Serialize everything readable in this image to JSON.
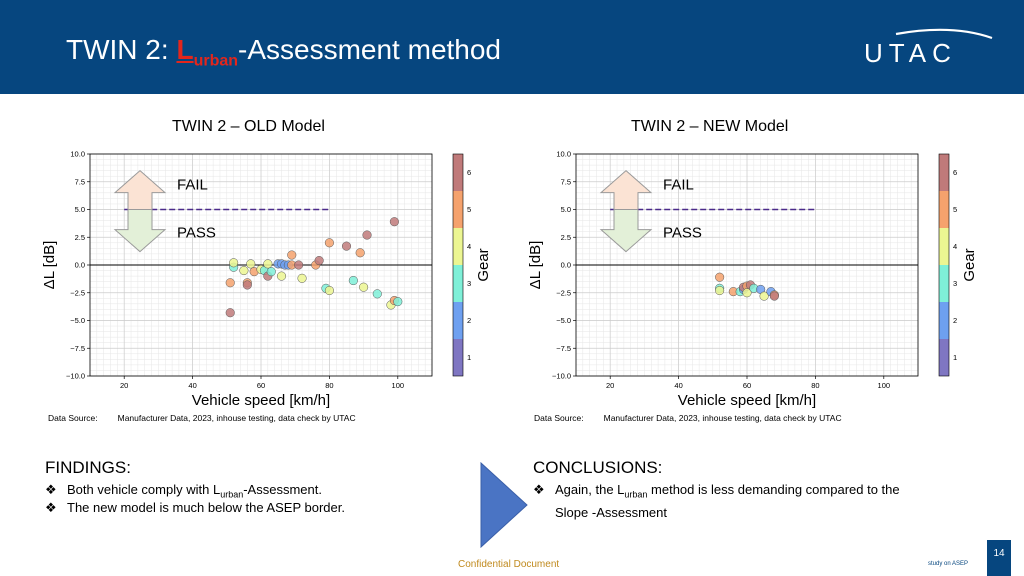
{
  "header": {
    "title_prefix": "TWIN 2: ",
    "title_L": "L",
    "title_sub": "urban",
    "title_suffix": "-Assessment method",
    "logo_text": "UTAC"
  },
  "colors": {
    "header_bg": "#06467f",
    "accent_red": "#e3261c",
    "confidential": "#c08a1e"
  },
  "old_model": {
    "subtitle": "TWIN 2 – OLD Model",
    "source_label": "Data Source:",
    "source_text": "Manufacturer Data, 2023, inhouse testing, data check by UTAC"
  },
  "new_model": {
    "subtitle": "TWIN 2 – NEW Model",
    "source_label": "Data Source:",
    "source_text": "Manufacturer Data, 2023, inhouse testing, data check by UTAC"
  },
  "chart_data": [
    {
      "type": "scatter",
      "xlabel": "Vehicle speed [km/h]",
      "ylabel": "ΔL [dB]",
      "xlim": [
        10,
        110
      ],
      "ylim": [
        -10,
        10
      ],
      "xticks": [
        20,
        40,
        60,
        80,
        100
      ],
      "yticks": [
        -10,
        -7.5,
        -5,
        -2.5,
        0,
        2.5,
        5,
        7.5,
        10
      ],
      "ytick_labels": [
        "−10.0",
        "−7.5",
        "−5.0",
        "−2.5",
        "0.0",
        "2.5",
        "5.0",
        "7.5",
        "10.0"
      ],
      "grid": true,
      "threshold_y": 5,
      "threshold_x": [
        20,
        80
      ],
      "reference_y": 0,
      "fail_label": "FAIL",
      "pass_label": "PASS",
      "colorbar": {
        "label": "Gear",
        "ticks": [
          1,
          2,
          3,
          4,
          5,
          6
        ]
      },
      "points": [
        {
          "x": 51,
          "y": -4.3,
          "gear": 6
        },
        {
          "x": 51,
          "y": -1.6,
          "gear": 5
        },
        {
          "x": 52,
          "y": -0.2,
          "gear": 3
        },
        {
          "x": 52,
          "y": 0.2,
          "gear": 4
        },
        {
          "x": 55,
          "y": -0.5,
          "gear": 4
        },
        {
          "x": 56,
          "y": -1.6,
          "gear": 5
        },
        {
          "x": 56,
          "y": -1.8,
          "gear": 6
        },
        {
          "x": 57,
          "y": 0.1,
          "gear": 4
        },
        {
          "x": 58,
          "y": -0.6,
          "gear": 5
        },
        {
          "x": 60,
          "y": -0.4,
          "gear": 4
        },
        {
          "x": 61,
          "y": -0.5,
          "gear": 3
        },
        {
          "x": 62,
          "y": -1.0,
          "gear": 6
        },
        {
          "x": 62,
          "y": 0.1,
          "gear": 4
        },
        {
          "x": 63,
          "y": -0.6,
          "gear": 3
        },
        {
          "x": 65,
          "y": 0.1,
          "gear": 2
        },
        {
          "x": 66,
          "y": 0.1,
          "gear": 2
        },
        {
          "x": 67,
          "y": 0.0,
          "gear": 2
        },
        {
          "x": 68,
          "y": 0.0,
          "gear": 2
        },
        {
          "x": 66,
          "y": -1.0,
          "gear": 4
        },
        {
          "x": 69,
          "y": 0.0,
          "gear": 5
        },
        {
          "x": 69,
          "y": 0.9,
          "gear": 5
        },
        {
          "x": 71,
          "y": 0.0,
          "gear": 6
        },
        {
          "x": 72,
          "y": -1.2,
          "gear": 4
        },
        {
          "x": 76,
          "y": 0.0,
          "gear": 5
        },
        {
          "x": 77,
          "y": 0.4,
          "gear": 6
        },
        {
          "x": 79,
          "y": -2.1,
          "gear": 3
        },
        {
          "x": 80,
          "y": 2.0,
          "gear": 5
        },
        {
          "x": 80,
          "y": -2.3,
          "gear": 4
        },
        {
          "x": 85,
          "y": 1.7,
          "gear": 6
        },
        {
          "x": 87,
          "y": -1.4,
          "gear": 3
        },
        {
          "x": 89,
          "y": 1.1,
          "gear": 5
        },
        {
          "x": 90,
          "y": -2.0,
          "gear": 4
        },
        {
          "x": 91,
          "y": 2.7,
          "gear": 6
        },
        {
          "x": 94,
          "y": -2.6,
          "gear": 3
        },
        {
          "x": 98,
          "y": -3.6,
          "gear": 4
        },
        {
          "x": 99,
          "y": 3.9,
          "gear": 6
        },
        {
          "x": 99,
          "y": -3.2,
          "gear": 5
        },
        {
          "x": 100,
          "y": -3.3,
          "gear": 3
        }
      ]
    },
    {
      "type": "scatter",
      "xlabel": "Vehicle speed [km/h]",
      "ylabel": "ΔL [dB]",
      "xlim": [
        10,
        110
      ],
      "ylim": [
        -10,
        10
      ],
      "xticks": [
        20,
        40,
        60,
        80,
        100
      ],
      "yticks": [
        -10,
        -7.5,
        -5,
        -2.5,
        0,
        2.5,
        5,
        7.5,
        10
      ],
      "ytick_labels": [
        "−10.0",
        "−7.5",
        "−5.0",
        "−2.5",
        "0.0",
        "2.5",
        "5.0",
        "7.5",
        "10.0"
      ],
      "grid": true,
      "threshold_y": 5,
      "threshold_x": [
        20,
        80
      ],
      "reference_y": 0,
      "fail_label": "FAIL",
      "pass_label": "PASS",
      "colorbar": {
        "label": "Gear",
        "ticks": [
          1,
          2,
          3,
          4,
          5,
          6
        ]
      },
      "points": [
        {
          "x": 52,
          "y": -1.1,
          "gear": 5
        },
        {
          "x": 52,
          "y": -2.1,
          "gear": 3
        },
        {
          "x": 52,
          "y": -2.3,
          "gear": 4
        },
        {
          "x": 56,
          "y": -2.4,
          "gear": 5
        },
        {
          "x": 58,
          "y": -2.4,
          "gear": 3
        },
        {
          "x": 59,
          "y": -2.2,
          "gear": 2
        },
        {
          "x": 59,
          "y": -2.0,
          "gear": 6
        },
        {
          "x": 60,
          "y": -1.9,
          "gear": 5
        },
        {
          "x": 60,
          "y": -2.5,
          "gear": 4
        },
        {
          "x": 61,
          "y": -1.8,
          "gear": 6
        },
        {
          "x": 62,
          "y": -2.1,
          "gear": 3
        },
        {
          "x": 64,
          "y": -2.2,
          "gear": 2
        },
        {
          "x": 65,
          "y": -2.8,
          "gear": 4
        },
        {
          "x": 67,
          "y": -2.4,
          "gear": 2
        },
        {
          "x": 68,
          "y": -2.7,
          "gear": 5
        },
        {
          "x": 68,
          "y": -2.8,
          "gear": 6
        }
      ]
    }
  ],
  "findings": {
    "title": "FINDINGS:",
    "bullet_icon": "diamond-cross-bullet-icon",
    "b1_pre": "Both vehicle comply with L",
    "b1_sub": "urban",
    "b1_post": "-Assessment.",
    "b2": "The new model is much below the ASEP border."
  },
  "conclusions": {
    "title": "CONCLUSIONS:",
    "b1_pre": "Again, the L",
    "b1_sub": "urban",
    "b1_post": " method is less demanding compared to the",
    "b1_line2": "Slope -Assessment"
  },
  "footer": {
    "confidential": "Confidential Document",
    "study": "study on ASEP",
    "page": "14"
  }
}
